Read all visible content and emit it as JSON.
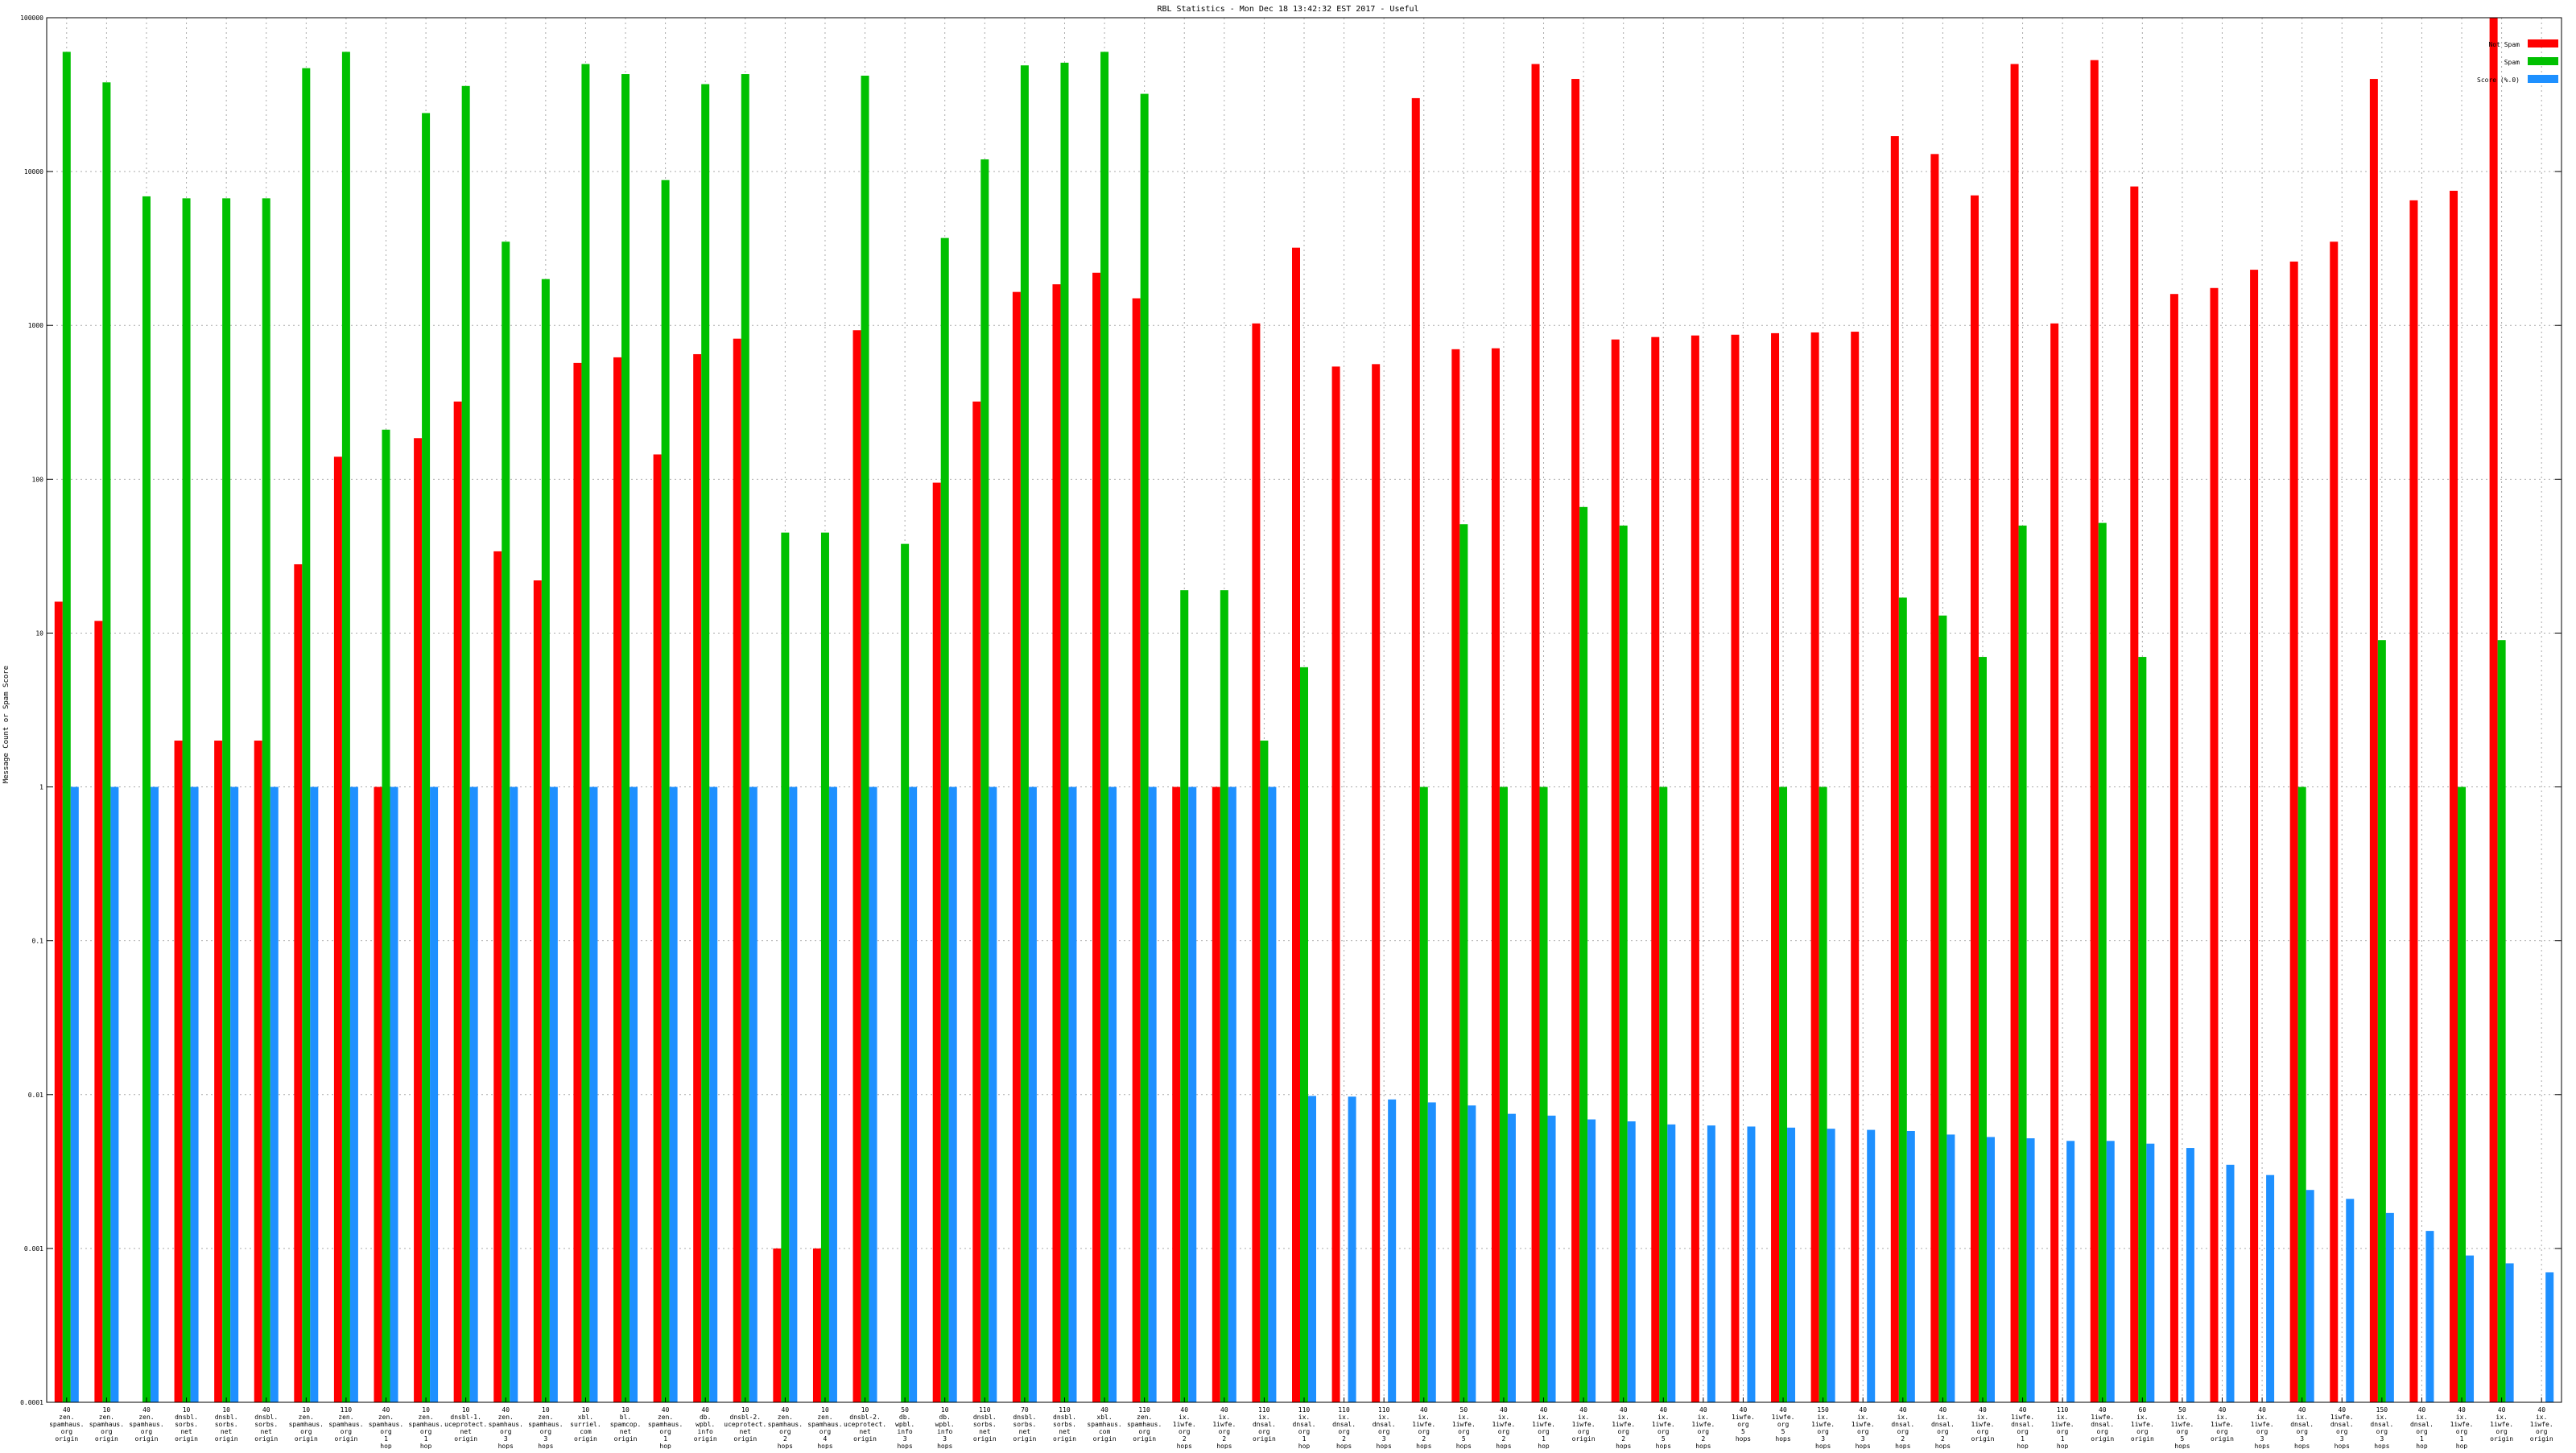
{
  "chart_data": {
    "type": "bar",
    "title": "RBL Statistics - Mon Dec 18 13:42:32 EST 2017 - Useful",
    "xlabel": "",
    "ylabel": "Message Count or Spam Score",
    "yscale": "log",
    "ylim": [
      0.0001,
      100000
    ],
    "grid": true,
    "legend_position": "top-right",
    "y_ticks": [
      "0.0001",
      "0.001",
      "0.01",
      "0.1",
      "1",
      "10",
      "100",
      "1000",
      "10000",
      "100000"
    ],
    "categories": [
      "40 zen. spamhaus. org origin",
      "10 zen. spamhaus. org origin",
      "40 zen. spamhaus. org origin",
      "10 dnsbl. sorbs. net origin",
      "10 dnsbl. sorbs. net origin",
      "40 dnsbl. sorbs. net origin",
      "10 zen. spamhaus. org origin",
      "110 zen. spamhaus. org origin",
      "40 zen. spamhaus. org 1 hop",
      "10 zen. spamhaus. org 1 hop",
      "10 dnsbl-1. uceprotect. net origin",
      "40 zen. spamhaus. org 3 hops",
      "10 zen. spamhaus. org 3 hops",
      "10 xbl. surriel. com origin",
      "10 bl. spamcop. net origin",
      "40 zen. spamhaus. org 1 hop",
      "40 db. wpbl. info origin",
      "10 dnsbl-2. uceprotect. net origin",
      "40 zen. spamhaus. org 2 hops",
      "10 zen. spamhaus. org 4 hops",
      "10 dnsbl-2. uceprotect. net origin",
      "50 db. wpbl. info 3 hops",
      "10 db. wpbl. info 3 hops",
      "110 dnsbl. sorbs. net origin",
      "70 dnsbl. sorbs. net origin",
      "110 dnsbl. sorbs. net origin",
      "40 xbl. spamhaus. com origin",
      "110 zen. spamhaus. org origin",
      "40 ix. 1iwfe. org 2 hops",
      "40 ix. 1iwfe. org 2 hops",
      "110 ix. dnsal. org origin",
      "110 ix. dnsal. org 1 hop",
      "110 ix. dnsal. org 2 hops",
      "110 ix. dnsal. org 3 hops",
      "40 ix. 1iwfe. org 2 hops",
      "50 ix. 1iwfe. org 5 hops",
      "40 ix. 1iwfe. org 2 hops",
      "40 ix. 1iwfe. org 1 hop",
      "40 ix. 1iwfe. org origin",
      "40 ix. 1iwfe. org 2 hops",
      "40 ix. 1iwfe. org 5 hops",
      "40 ix. 1iwfe. org 2 hops",
      "40 1iwfe. org 5 hops",
      "40 1iwfe. org 5 hops",
      "150 ix. 1iwfe. org 3 hops",
      "40 ix. 1iwfe. org 3 hops",
      "40 ix. dnsal. org 2 hops",
      "40 ix. dnsal. org 2 hops",
      "40 ix. 1iwfe. org origin",
      "40 1iwfe. dnsal. org 1 hop",
      "110 ix. 1iwfe. org 1 hop",
      "40 1iwfe. dnsal. org origin",
      "60 ix. 1iwfe. org origin",
      "50 ix. 1iwfe. org 5 hops",
      "40 ix. 1iwfe. org origin",
      "40 ix. 1iwfe. org 3 hops",
      "40 ix. dnsal. org 3 hops",
      "40 1iwfe. dnsal. org 3 hops",
      "150 ix. dnsal. org 3 hops",
      "40 ix. dnsal. org 1 hop",
      "40 ix. 1iwfe. org 1 hop",
      "40 ix. 1iwfe. org origin",
      "40 ix. 1iwfe. org origin"
    ],
    "series": [
      {
        "name": "Not Spam",
        "color": "#ff0000",
        "values": [
          16,
          12,
          null,
          2,
          2,
          2,
          28,
          140,
          1,
          185,
          320,
          34,
          22,
          570,
          620,
          145,
          650,
          820,
          0.001,
          0.001,
          930,
          null,
          95,
          320,
          1650,
          1850,
          2200,
          1500,
          1,
          1,
          1030,
          3200,
          540,
          560,
          30000,
          700,
          710,
          50000,
          40000,
          810,
          840,
          860,
          870,
          890,
          900,
          910,
          17000,
          13000,
          7000,
          50000,
          1030,
          53000,
          8000,
          1600,
          1750,
          2300,
          2600,
          3500,
          40000,
          6500,
          7500,
          100000,
          null
        ],
        "note": ""
      },
      {
        "name": "Spam",
        "color": "#00c000",
        "values": [
          60000,
          38000,
          6900,
          6700,
          6700,
          6700,
          47000,
          60000,
          210,
          24000,
          36000,
          3500,
          2000,
          50000,
          43000,
          8800,
          37000,
          43000,
          45,
          45,
          42000,
          38,
          3700,
          12000,
          49000,
          51000,
          60000,
          32000,
          19,
          19,
          2,
          6,
          null,
          null,
          1,
          51,
          1,
          1,
          66,
          50,
          1,
          null,
          null,
          1,
          1,
          null,
          17,
          13,
          7,
          50,
          null,
          52,
          7,
          null,
          null,
          null,
          1,
          null,
          9,
          null,
          1,
          9,
          null
        ]
      },
      {
        "name": "Score (%.0)",
        "color": "#1e90ff",
        "values": [
          1,
          1,
          1,
          1,
          1,
          1,
          1,
          1,
          1,
          1,
          1,
          1,
          1,
          1,
          1,
          1,
          1,
          1,
          1,
          1,
          1,
          1,
          1,
          1,
          1,
          1,
          1,
          1,
          1,
          1,
          1,
          0.0098,
          0.0097,
          0.0093,
          0.0089,
          0.0085,
          0.0075,
          0.0073,
          0.0069,
          0.0067,
          0.0064,
          0.0063,
          0.0062,
          0.0061,
          0.006,
          0.0059,
          0.0058,
          0.0055,
          0.0053,
          0.0052,
          0.005,
          0.005,
          0.0048,
          0.0045,
          0.0035,
          0.003,
          0.0024,
          0.0021,
          0.0017,
          0.0013,
          0.0009,
          0.0008,
          0.0007
        ]
      }
    ]
  }
}
